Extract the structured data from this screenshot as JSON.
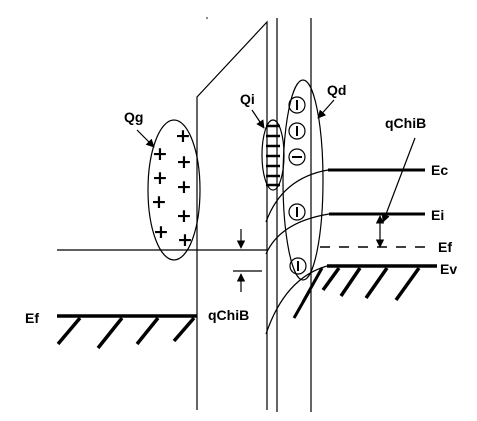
{
  "labels": {
    "qg": "Qg",
    "qi": "Qi",
    "qd": "Qd",
    "qchib_top": "qChiB",
    "qchib_bottom": "qChiB",
    "ec": "Ec",
    "ei": "Ei",
    "ef_right": "Ef",
    "ev": "Ev",
    "ef_left": "Ef"
  },
  "signs": {
    "plus": "+",
    "minus": "−"
  }
}
